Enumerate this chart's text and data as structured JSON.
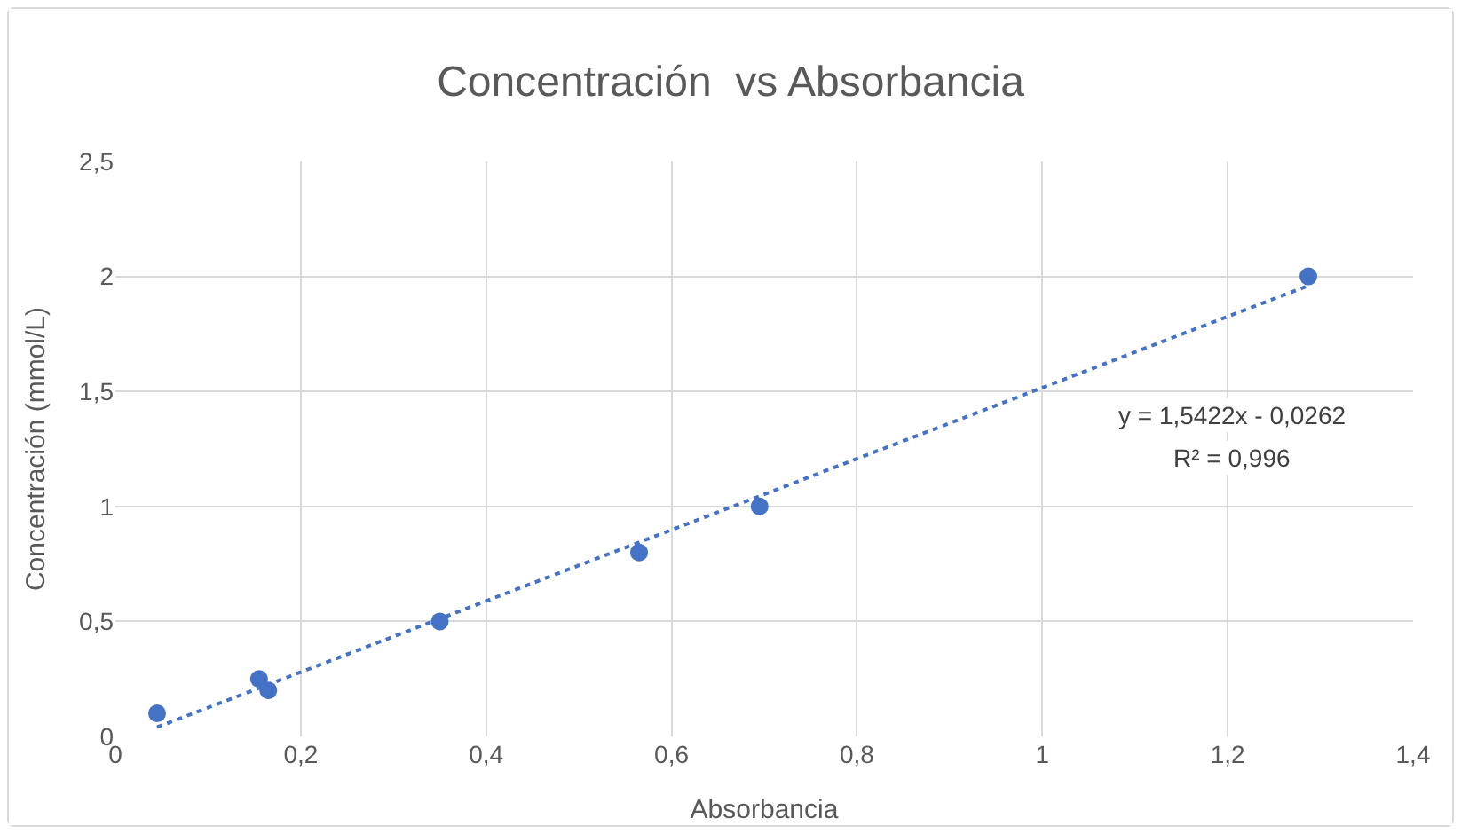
{
  "chart_data": {
    "type": "scatter",
    "title": "Concentración  vs Absorbancia",
    "xlabel": "Absorbancia",
    "ylabel": "Concentración (mmol/L)",
    "xlim": [
      0,
      1.4
    ],
    "xticks": [
      0,
      {
        "value": 0.2,
        "label": "0,2"
      },
      {
        "value": 0.4,
        "label": "0,4"
      },
      {
        "value": 0.6,
        "label": "0,6"
      },
      {
        "value": 0.8,
        "label": "0,8"
      },
      1,
      {
        "value": 1.2,
        "label": "1,2"
      },
      {
        "value": 1.4,
        "label": "1,4"
      }
    ],
    "ylim": [
      0,
      2.5
    ],
    "yticks": [
      0,
      {
        "value": 0.5,
        "label": "0,5"
      },
      1,
      {
        "value": 1.5,
        "label": "1,5"
      },
      2,
      {
        "value": 2.5,
        "label": "2,5"
      }
    ],
    "grid": true,
    "series": [
      {
        "color": "#4472c4",
        "marker": "circle",
        "x": [
          0.045,
          0.155,
          0.165,
          0.35,
          0.565,
          0.695,
          1.287
        ],
        "values": [
          0.1,
          0.25,
          0.2,
          0.5,
          0.8,
          1.0,
          2.0
        ]
      },
      {
        "type": "line",
        "color": "#4472c4",
        "line_style": "dotted",
        "marker": "none",
        "x": [
          0.045,
          1.287
        ],
        "values": [
          0.04,
          1.96
        ]
      }
    ],
    "annotations": [
      "y = 1,5422x - 0,0262",
      "R² = 0,996"
    ]
  }
}
